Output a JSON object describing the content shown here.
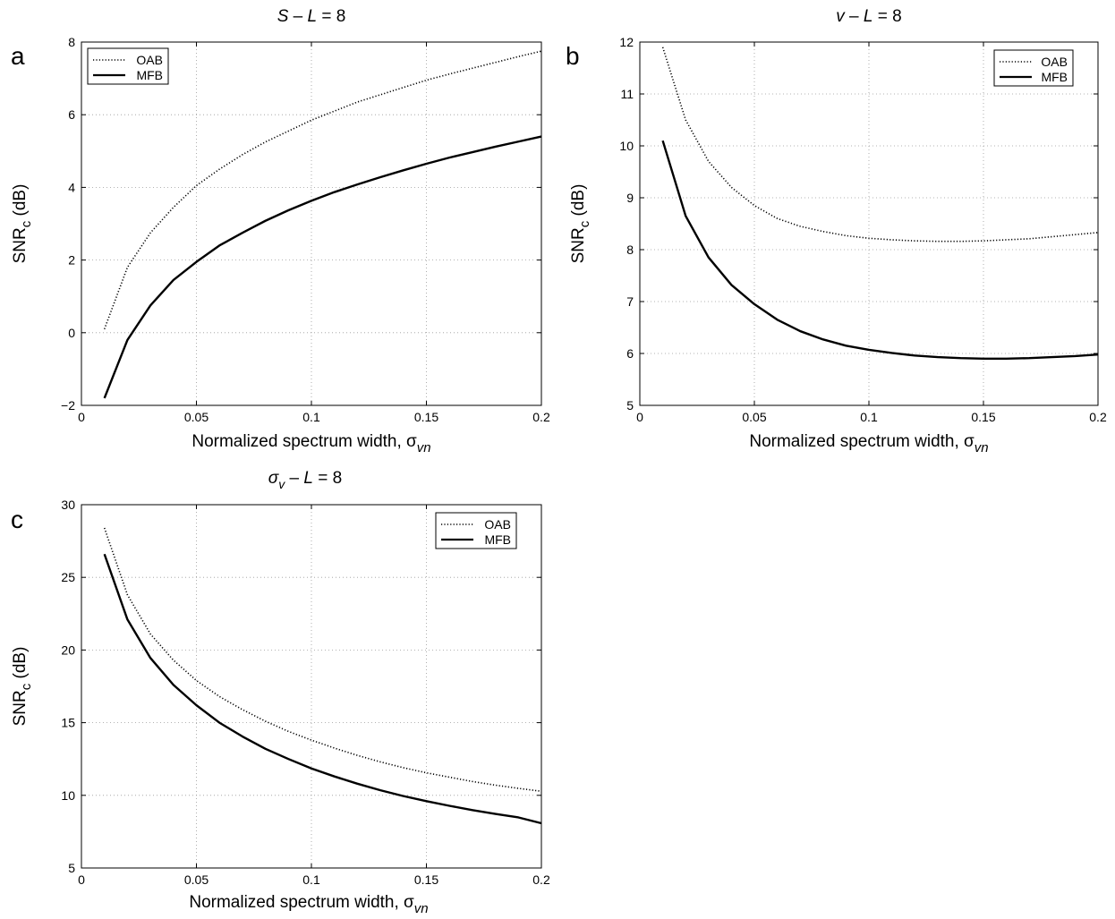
{
  "chart_data": [
    {
      "panel_label": "a",
      "type": "line",
      "title": {
        "pre": "S",
        "mid": "  –  ",
        "l": "L",
        "post": " = 8"
      },
      "xlabel": "Normalized spectrum width, σ",
      "xlabel_sub": "vn",
      "ylabel": "SNR",
      "ylabel_sub": "c",
      "ylabel_post": " (dB)",
      "xlim": [
        0,
        0.2
      ],
      "ylim": [
        -2,
        8
      ],
      "xticks": [
        0,
        0.05,
        0.1,
        0.15,
        0.2
      ],
      "xtick_labels": [
        "0",
        "0.05",
        "0.1",
        "0.15",
        "0.2"
      ],
      "yticks": [
        -2,
        0,
        2,
        4,
        6,
        8
      ],
      "ytick_labels": [
        "−2",
        "0",
        "2",
        "4",
        "6",
        "8"
      ],
      "grid": true,
      "legend_position": "top-left",
      "x": [
        0.01,
        0.02,
        0.03,
        0.04,
        0.05,
        0.06,
        0.07,
        0.08,
        0.09,
        0.1,
        0.11,
        0.12,
        0.13,
        0.14,
        0.15,
        0.16,
        0.17,
        0.18,
        0.19,
        0.2
      ],
      "series": [
        {
          "name": "OAB",
          "style": "dotted",
          "values": [
            0.1,
            1.8,
            2.75,
            3.45,
            4.05,
            4.5,
            4.9,
            5.25,
            5.55,
            5.85,
            6.1,
            6.35,
            6.55,
            6.75,
            6.95,
            7.12,
            7.28,
            7.44,
            7.6,
            7.75
          ]
        },
        {
          "name": "MFB",
          "style": "solid",
          "values": [
            -1.8,
            -0.2,
            0.75,
            1.45,
            1.95,
            2.4,
            2.75,
            3.08,
            3.37,
            3.63,
            3.87,
            4.08,
            4.28,
            4.47,
            4.65,
            4.82,
            4.97,
            5.12,
            5.26,
            5.4
          ]
        }
      ]
    },
    {
      "panel_label": "b",
      "type": "line",
      "title": {
        "pre": "v",
        "mid": "  –  ",
        "l": "L",
        "post": " = 8"
      },
      "xlabel": "Normalized spectrum width, σ",
      "xlabel_sub": "vn",
      "ylabel": "SNR",
      "ylabel_sub": "c",
      "ylabel_post": " (dB)",
      "xlim": [
        0,
        0.2
      ],
      "ylim": [
        5,
        12
      ],
      "xticks": [
        0,
        0.05,
        0.1,
        0.15,
        0.2
      ],
      "xtick_labels": [
        "0",
        "0.05",
        "0.1",
        "0.15",
        "0.2"
      ],
      "yticks": [
        5,
        6,
        7,
        8,
        9,
        10,
        11,
        12
      ],
      "ytick_labels": [
        "5",
        "6",
        "7",
        "8",
        "9",
        "10",
        "11",
        "12"
      ],
      "grid": true,
      "legend_position": "top-right",
      "x": [
        0.01,
        0.02,
        0.03,
        0.04,
        0.05,
        0.06,
        0.07,
        0.08,
        0.09,
        0.1,
        0.11,
        0.12,
        0.13,
        0.14,
        0.15,
        0.16,
        0.17,
        0.18,
        0.19,
        0.2
      ],
      "series": [
        {
          "name": "OAB",
          "style": "dotted",
          "values": [
            11.9,
            10.5,
            9.7,
            9.2,
            8.85,
            8.6,
            8.45,
            8.35,
            8.27,
            8.22,
            8.19,
            8.17,
            8.16,
            8.16,
            8.17,
            8.19,
            8.21,
            8.25,
            8.29,
            8.33
          ]
        },
        {
          "name": "MFB",
          "style": "solid",
          "values": [
            10.1,
            8.65,
            7.85,
            7.32,
            6.95,
            6.65,
            6.43,
            6.27,
            6.15,
            6.07,
            6.01,
            5.96,
            5.93,
            5.91,
            5.9,
            5.9,
            5.91,
            5.93,
            5.95,
            5.98
          ]
        }
      ]
    },
    {
      "panel_label": "c",
      "type": "line",
      "title": {
        "pre": "σ",
        "pre_sub": "v",
        "mid": "  –  ",
        "l": "L",
        "post": " = 8"
      },
      "xlabel": "Normalized spectrum width, σ",
      "xlabel_sub": "vn",
      "ylabel": "SNR",
      "ylabel_sub": "c",
      "ylabel_post": " (dB)",
      "xlim": [
        0,
        0.2
      ],
      "ylim": [
        5,
        30
      ],
      "xticks": [
        0,
        0.05,
        0.1,
        0.15,
        0.2
      ],
      "xtick_labels": [
        "0",
        "0.05",
        "0.1",
        "0.15",
        "0.2"
      ],
      "yticks": [
        5,
        10,
        15,
        20,
        25,
        30
      ],
      "ytick_labels": [
        "5",
        "10",
        "15",
        "20",
        "25",
        "30"
      ],
      "grid": true,
      "legend_position": "top-right",
      "x": [
        0.01,
        0.02,
        0.03,
        0.04,
        0.05,
        0.06,
        0.07,
        0.08,
        0.09,
        0.1,
        0.11,
        0.12,
        0.13,
        0.14,
        0.15,
        0.16,
        0.17,
        0.18,
        0.19,
        0.2
      ],
      "series": [
        {
          "name": "OAB",
          "style": "dotted",
          "values": [
            28.4,
            23.8,
            21.1,
            19.3,
            17.9,
            16.8,
            15.9,
            15.1,
            14.4,
            13.8,
            13.25,
            12.75,
            12.3,
            11.9,
            11.55,
            11.25,
            10.95,
            10.7,
            10.48,
            10.28
          ]
        },
        {
          "name": "MFB",
          "style": "solid",
          "values": [
            26.6,
            22.1,
            19.45,
            17.6,
            16.2,
            15.0,
            14.05,
            13.2,
            12.5,
            11.85,
            11.3,
            10.8,
            10.35,
            9.95,
            9.6,
            9.28,
            8.98,
            8.72,
            8.48,
            8.08
          ]
        }
      ]
    }
  ]
}
